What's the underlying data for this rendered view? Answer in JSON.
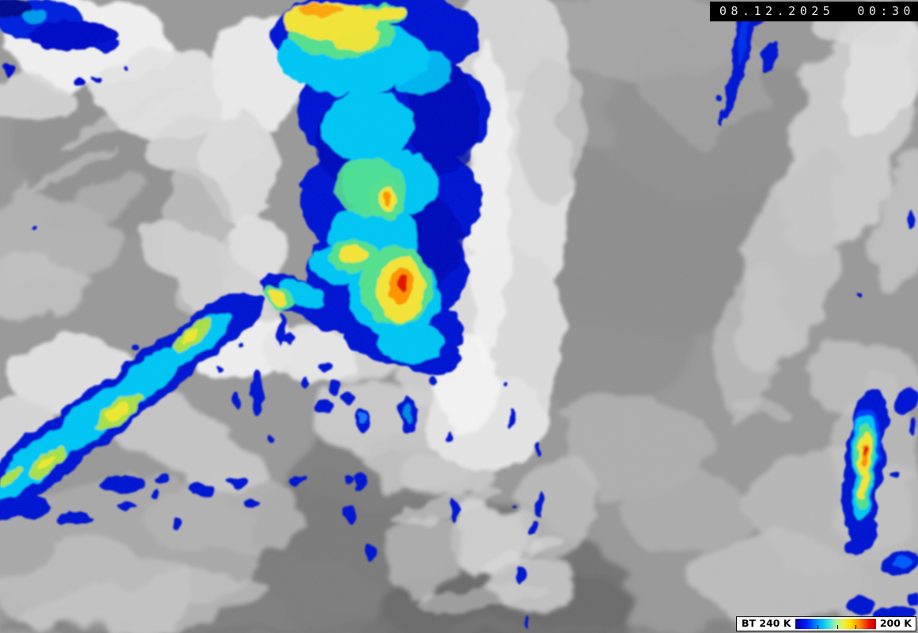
{
  "header": {
    "timestamp": "08.12.2025  00:30"
  },
  "legend": {
    "quantity_label": "BT 240 K",
    "max_label": "200 K",
    "colorbar": {
      "stops": [
        "#000096 0%",
        "#0020ff 14%",
        "#00a0ff 29%",
        "#2ee4e0 41%",
        "#a8f0a0 50%",
        "#e6f05c 58%",
        "#ffe400 67%",
        "#ff9000 79%",
        "#f01400 91%",
        "#b80000 100%"
      ],
      "tick_positions": [
        0.28,
        0.52,
        0.75
      ]
    }
  },
  "image": {
    "palette": {
      "background_gray": "#9a9a9a",
      "cold_dark_blue": "#0013d2",
      "cold_cyan": "#00c6f4",
      "cold_green": "#55e08e",
      "cold_yellow": "#f2e437",
      "cold_orange": "#ff9400",
      "cold_red": "#e01400"
    }
  }
}
